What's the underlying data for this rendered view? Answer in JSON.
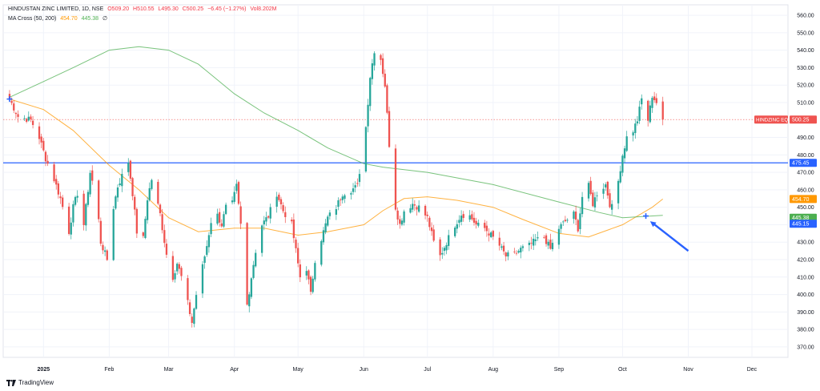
{
  "legend": {
    "symbol": "HINDUSTAN ZINC LIMITED, 1D, NSE",
    "open": "O509.20",
    "high": "H510.55",
    "low": "L495.30",
    "close": "C500.25",
    "change": "−6.45 (−1.27%)",
    "volume": "Vol8.202M",
    "indicator": "MA Cross (50, 200)",
    "ma50": "454.70",
    "ma200": "445.38",
    "extra": "∅"
  },
  "branding": {
    "name": "TradingView"
  },
  "colors": {
    "up": "#26a69a",
    "down": "#ef5350",
    "ma50": "#ff9800",
    "ma200": "#4caf50",
    "hline": "#2962ff",
    "arrow": "#2962ff",
    "price_label": "#ef5350"
  },
  "chart_data": {
    "type": "candlestick",
    "title": "HINDUSTAN ZINC LIMITED, 1D, NSE",
    "ylim": [
      364,
      566
    ],
    "y_ticks": [
      "560.00",
      "550.00",
      "540.00",
      "530.00",
      "520.00",
      "510.00",
      "490.00",
      "480.00",
      "470.00",
      "460.00",
      "450.00",
      "440.00",
      "430.00",
      "420.00",
      "410.00",
      "400.00",
      "390.00",
      "380.00",
      "370.00"
    ],
    "x_ticks": [
      "2025",
      "Feb",
      "Mar",
      "Apr",
      "May",
      "Jun",
      "Jul",
      "Aug",
      "Sep",
      "Oct",
      "Nov",
      "Dec"
    ],
    "x_tick_dates": [
      "2025-01-01",
      "2025-02-01",
      "2025-03-01",
      "2025-04-01",
      "2025-05-01",
      "2025-06-01",
      "2025-07-01",
      "2025-08-01",
      "2025-09-01",
      "2025-10-01",
      "2025-11-01",
      "2025-12-01"
    ],
    "x_range": [
      "2024-12-13",
      "2025-12-18"
    ],
    "grid": true,
    "anchors": [
      [
        "2024-12-16",
        512
      ],
      [
        "2024-12-20",
        502
      ],
      [
        "2024-12-26",
        500
      ],
      [
        "2024-12-30",
        490
      ],
      [
        "2025-01-02",
        478
      ],
      [
        "2025-01-06",
        466
      ],
      [
        "2025-01-09",
        455
      ],
      [
        "2025-01-13",
        436
      ],
      [
        "2025-01-15",
        450
      ],
      [
        "2025-01-17",
        458
      ],
      [
        "2025-01-20",
        440
      ],
      [
        "2025-01-23",
        470
      ],
      [
        "2025-01-26",
        455
      ],
      [
        "2025-01-28",
        430
      ],
      [
        "2025-01-31",
        420
      ],
      [
        "2025-02-03",
        450
      ],
      [
        "2025-02-05",
        462
      ],
      [
        "2025-02-07",
        468
      ],
      [
        "2025-02-10",
        476
      ],
      [
        "2025-02-12",
        458
      ],
      [
        "2025-02-14",
        436
      ],
      [
        "2025-02-17",
        432
      ],
      [
        "2025-02-19",
        455
      ],
      [
        "2025-02-21",
        466
      ],
      [
        "2025-02-25",
        446
      ],
      [
        "2025-02-28",
        423
      ],
      [
        "2025-03-03",
        410
      ],
      [
        "2025-03-05",
        418
      ],
      [
        "2025-03-07",
        410
      ],
      [
        "2025-03-10",
        395
      ],
      [
        "2025-03-12",
        384
      ],
      [
        "2025-03-14",
        400
      ],
      [
        "2025-03-17",
        416
      ],
      [
        "2025-03-19",
        428
      ],
      [
        "2025-03-21",
        442
      ],
      [
        "2025-03-23",
        448
      ],
      [
        "2025-03-26",
        440
      ],
      [
        "2025-03-28",
        450
      ],
      [
        "2025-03-31",
        452
      ],
      [
        "2025-04-02",
        462
      ],
      [
        "2025-04-04",
        440
      ],
      [
        "2025-04-07",
        394
      ],
      [
        "2025-04-09",
        410
      ],
      [
        "2025-04-11",
        425
      ],
      [
        "2025-04-14",
        440
      ],
      [
        "2025-04-17",
        445
      ],
      [
        "2025-04-21",
        458
      ],
      [
        "2025-04-24",
        448
      ],
      [
        "2025-04-28",
        440
      ],
      [
        "2025-04-30",
        425
      ],
      [
        "2025-05-02",
        410
      ],
      [
        "2025-05-05",
        415
      ],
      [
        "2025-05-07",
        400
      ],
      [
        "2025-05-09",
        420
      ],
      [
        "2025-05-12",
        432
      ],
      [
        "2025-05-15",
        444
      ],
      [
        "2025-05-19",
        450
      ],
      [
        "2025-05-22",
        458
      ],
      [
        "2025-05-26",
        460
      ],
      [
        "2025-05-29",
        462
      ],
      [
        "2025-06-02",
        496
      ],
      [
        "2025-06-04",
        525
      ],
      [
        "2025-06-06",
        540
      ],
      [
        "2025-06-09",
        535
      ],
      [
        "2025-06-11",
        520
      ],
      [
        "2025-06-13",
        486
      ],
      [
        "2025-06-16",
        450
      ],
      [
        "2025-06-18",
        440
      ],
      [
        "2025-06-20",
        448
      ],
      [
        "2025-06-24",
        452
      ],
      [
        "2025-06-27",
        450
      ],
      [
        "2025-07-01",
        444
      ],
      [
        "2025-07-04",
        430
      ],
      [
        "2025-07-07",
        422
      ],
      [
        "2025-07-10",
        430
      ],
      [
        "2025-07-14",
        440
      ],
      [
        "2025-07-17",
        446
      ],
      [
        "2025-07-21",
        445
      ],
      [
        "2025-07-24",
        440
      ],
      [
        "2025-07-28",
        438
      ],
      [
        "2025-07-31",
        434
      ],
      [
        "2025-08-04",
        428
      ],
      [
        "2025-08-07",
        422
      ],
      [
        "2025-08-11",
        423
      ],
      [
        "2025-08-14",
        426
      ],
      [
        "2025-08-18",
        428
      ],
      [
        "2025-08-21",
        431
      ],
      [
        "2025-08-25",
        433
      ],
      [
        "2025-08-28",
        426
      ],
      [
        "2025-09-01",
        438
      ],
      [
        "2025-09-04",
        442
      ],
      [
        "2025-09-08",
        446
      ],
      [
        "2025-09-10",
        438
      ],
      [
        "2025-09-12",
        456
      ],
      [
        "2025-09-15",
        462
      ],
      [
        "2025-09-17",
        452
      ],
      [
        "2025-09-19",
        458
      ],
      [
        "2025-09-23",
        463
      ],
      [
        "2025-09-25",
        452
      ],
      [
        "2025-09-27",
        448
      ],
      [
        "2025-09-29",
        465
      ],
      [
        "2025-10-01",
        480
      ],
      [
        "2025-10-03",
        490
      ],
      [
        "2025-10-06",
        494
      ],
      [
        "2025-10-08",
        500
      ],
      [
        "2025-10-10",
        512
      ],
      [
        "2025-10-13",
        500
      ],
      [
        "2025-10-15",
        514
      ],
      [
        "2025-10-17",
        510
      ],
      [
        "2025-10-20",
        500
      ]
    ],
    "series": [
      {
        "name": "MA 50",
        "color": "#ff9800",
        "points": [
          [
            "2024-12-16",
            512
          ],
          [
            "2025-01-01",
            506
          ],
          [
            "2025-01-15",
            494
          ],
          [
            "2025-02-01",
            474
          ],
          [
            "2025-02-15",
            460
          ],
          [
            "2025-03-01",
            444
          ],
          [
            "2025-03-15",
            436
          ],
          [
            "2025-04-01",
            438
          ],
          [
            "2025-04-15",
            438
          ],
          [
            "2025-05-01",
            434
          ],
          [
            "2025-05-15",
            436
          ],
          [
            "2025-06-01",
            440
          ],
          [
            "2025-06-10",
            448
          ],
          [
            "2025-06-20",
            455
          ],
          [
            "2025-07-01",
            456
          ],
          [
            "2025-07-15",
            454
          ],
          [
            "2025-08-01",
            450
          ],
          [
            "2025-08-15",
            443
          ],
          [
            "2025-09-01",
            435
          ],
          [
            "2025-09-15",
            433
          ],
          [
            "2025-10-01",
            440
          ],
          [
            "2025-10-15",
            450
          ],
          [
            "2025-10-20",
            454.7
          ]
        ]
      },
      {
        "name": "MA 200",
        "color": "#4caf50",
        "points": [
          [
            "2024-12-16",
            513
          ],
          [
            "2025-01-01",
            522
          ],
          [
            "2025-01-15",
            530
          ],
          [
            "2025-02-01",
            540
          ],
          [
            "2025-02-15",
            542
          ],
          [
            "2025-03-01",
            540
          ],
          [
            "2025-03-15",
            532
          ],
          [
            "2025-04-01",
            515
          ],
          [
            "2025-04-15",
            504
          ],
          [
            "2025-05-01",
            494
          ],
          [
            "2025-05-15",
            484
          ],
          [
            "2025-06-01",
            475
          ],
          [
            "2025-06-10",
            473
          ],
          [
            "2025-07-01",
            470
          ],
          [
            "2025-08-01",
            463
          ],
          [
            "2025-09-01",
            453
          ],
          [
            "2025-09-20",
            447
          ],
          [
            "2025-10-01",
            444
          ],
          [
            "2025-10-20",
            445.38
          ]
        ]
      }
    ],
    "horizontal_line": {
      "value": 475.45,
      "label": "475.45"
    },
    "current_price": {
      "value": 500.25,
      "label": "HINDZINC EQ",
      "value_label": "500.25"
    },
    "price_labels": [
      {
        "value": 454.7,
        "label": "454.70",
        "color": "#ff9800"
      },
      {
        "value": 445.38,
        "label": "445.38",
        "color": "#4caf50"
      },
      {
        "value": 445.15,
        "label": "445.15",
        "color": "#2962ff"
      }
    ],
    "cross_markers": [
      [
        "2024-12-16",
        512
      ],
      [
        "2025-10-12",
        445
      ]
    ],
    "annotations": [
      {
        "type": "arrow",
        "from": [
          "2025-11-01",
          425
        ],
        "to": [
          "2025-10-14",
          442
        ]
      }
    ]
  }
}
